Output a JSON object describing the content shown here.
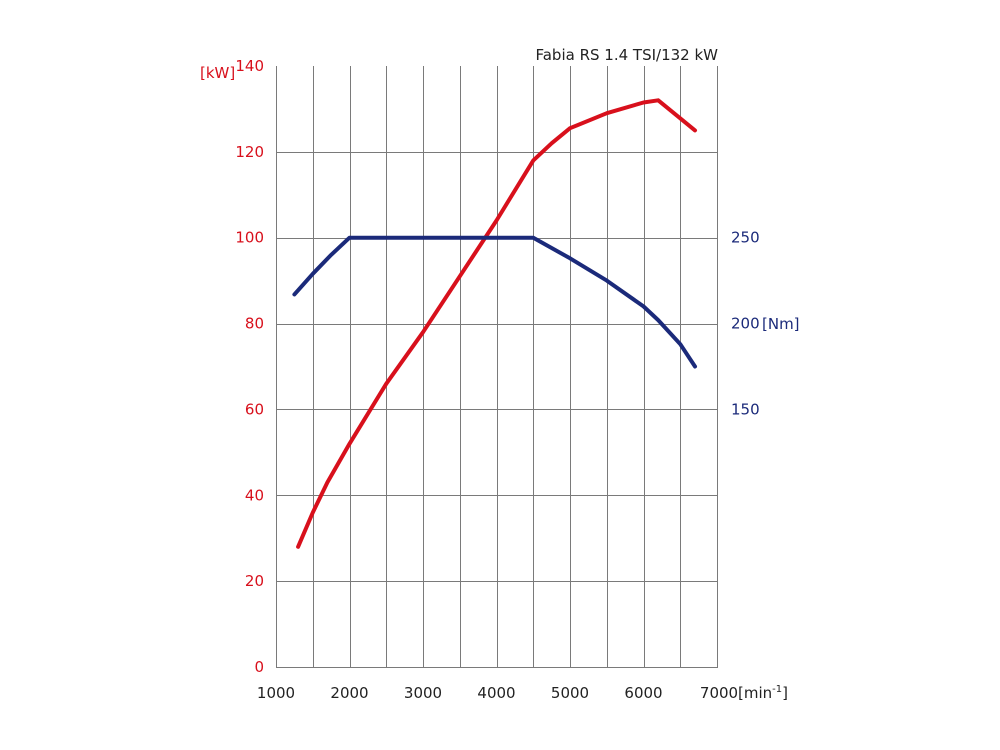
{
  "chart_data": {
    "type": "line",
    "title": "Fabia RS 1.4 TSI/132 kW",
    "x_ticks": [
      "1000",
      "2000",
      "3000",
      "4000",
      "5000",
      "6000",
      "7000"
    ],
    "xlabel": "[min-1]",
    "xlabel_text": "[min",
    "xlabel_superscript": "-1",
    "xlabel_close": "]",
    "xlim": [
      1000,
      7000
    ],
    "x_grid_step": 500,
    "y_left": {
      "label": "[kW]",
      "ticks": [
        "0",
        "20",
        "40",
        "60",
        "80",
        "100",
        "120",
        "140"
      ],
      "range": [
        0,
        140
      ],
      "grid_step": 20,
      "color": "#d8101c"
    },
    "y_right": {
      "label": "[Nm]",
      "ticks": [
        {
          "value": 150,
          "text": "150"
        },
        {
          "value": 200,
          "text": "200"
        },
        {
          "value": 250,
          "text": "250"
        }
      ],
      "range": [
        0,
        350
      ],
      "color": "#1b2a7a"
    },
    "grid": true,
    "series": [
      {
        "axis": "left",
        "color": "#d8101c",
        "points": [
          [
            1300,
            28
          ],
          [
            1500,
            36
          ],
          [
            1700,
            43
          ],
          [
            2000,
            52
          ],
          [
            2500,
            66
          ],
          [
            3000,
            78
          ],
          [
            3500,
            91
          ],
          [
            4000,
            104
          ],
          [
            4500,
            118
          ],
          [
            4750,
            122
          ],
          [
            5000,
            125.5
          ],
          [
            5500,
            129
          ],
          [
            6000,
            131.5
          ],
          [
            6200,
            132
          ],
          [
            6700,
            125
          ]
        ]
      },
      {
        "axis": "right",
        "color": "#1b2a7a",
        "points": [
          [
            1250,
            217
          ],
          [
            1500,
            229
          ],
          [
            1750,
            240
          ],
          [
            2000,
            250
          ],
          [
            2500,
            250
          ],
          [
            3000,
            250
          ],
          [
            3500,
            250
          ],
          [
            4000,
            250
          ],
          [
            4500,
            250
          ],
          [
            5000,
            238
          ],
          [
            5500,
            225
          ],
          [
            6000,
            210
          ],
          [
            6200,
            202
          ],
          [
            6500,
            188
          ],
          [
            6700,
            175
          ]
        ]
      }
    ]
  }
}
